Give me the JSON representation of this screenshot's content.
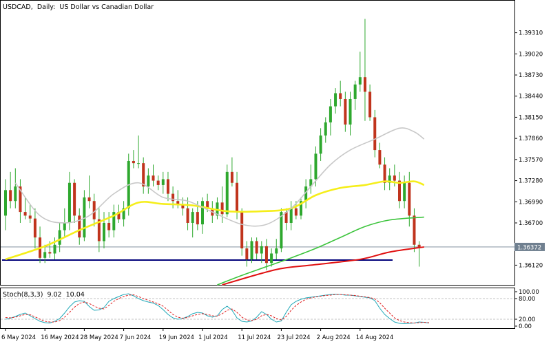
{
  "header": {
    "symbol": "USDCAD,",
    "timeframe": "Daily:",
    "description": "US Dollar vs Canadian Dollar"
  },
  "colors": {
    "bull": "#2ea82e",
    "bear": "#c0341d",
    "wick": "#2ea82e",
    "ma_fast": "#c8c8c8",
    "ma_mid": "#f5ee1a",
    "ma_slow": "#3cc43c",
    "ma_long": "#e01010",
    "support": "#00007a",
    "stoch_main": "#20a8b8",
    "stoch_signal": "#e02020",
    "last_price_bg": "#708090"
  },
  "chart_data": [
    {
      "type": "candlestick",
      "title": "USDCAD, Daily: US Dollar vs Canadian Dollar",
      "x_tick_labels": [
        "6 May 2024",
        "16 May 2024",
        "28 May 2024",
        "7 Jun 2024",
        "19 Jun 2024",
        "1 Jul 2024",
        "11 Jul 2024",
        "23 Jul 2024",
        "2 Aug 2024",
        "14 Aug 2024"
      ],
      "y_tick_labels": [
        "1.39310",
        "1.39020",
        "1.38730",
        "1.38440",
        "1.38150",
        "1.37860",
        "1.37570",
        "1.37280",
        "1.36990",
        "1.36700",
        "1.36120"
      ],
      "ylim": [
        1.3585,
        1.3975
      ],
      "last_price_label": "1.36372",
      "last_price": 1.3637,
      "support_level": 1.3619,
      "grid": false,
      "candles": [
        {
          "o": 1.368,
          "h": 1.373,
          "l": 1.366,
          "c": 1.3715
        },
        {
          "o": 1.3715,
          "h": 1.374,
          "l": 1.369,
          "c": 1.37
        },
        {
          "o": 1.37,
          "h": 1.3745,
          "l": 1.369,
          "c": 1.372
        },
        {
          "o": 1.372,
          "h": 1.373,
          "l": 1.367,
          "c": 1.3685
        },
        {
          "o": 1.3685,
          "h": 1.3705,
          "l": 1.3675,
          "c": 1.368
        },
        {
          "o": 1.368,
          "h": 1.3695,
          "l": 1.367,
          "c": 1.3676
        },
        {
          "o": 1.3676,
          "h": 1.369,
          "l": 1.3635,
          "c": 1.365
        },
        {
          "o": 1.365,
          "h": 1.3665,
          "l": 1.3615,
          "c": 1.3622
        },
        {
          "o": 1.3622,
          "h": 1.364,
          "l": 1.3615,
          "c": 1.363
        },
        {
          "o": 1.363,
          "h": 1.3645,
          "l": 1.3622,
          "c": 1.3628
        },
        {
          "o": 1.3628,
          "h": 1.365,
          "l": 1.362,
          "c": 1.364
        },
        {
          "o": 1.364,
          "h": 1.367,
          "l": 1.363,
          "c": 1.366
        },
        {
          "o": 1.366,
          "h": 1.369,
          "l": 1.365,
          "c": 1.367
        },
        {
          "o": 1.367,
          "h": 1.374,
          "l": 1.366,
          "c": 1.3725
        },
        {
          "o": 1.3725,
          "h": 1.373,
          "l": 1.367,
          "c": 1.368
        },
        {
          "o": 1.368,
          "h": 1.369,
          "l": 1.364,
          "c": 1.365
        },
        {
          "o": 1.365,
          "h": 1.3715,
          "l": 1.3645,
          "c": 1.3705
        },
        {
          "o": 1.3705,
          "h": 1.3735,
          "l": 1.369,
          "c": 1.37
        },
        {
          "o": 1.37,
          "h": 1.371,
          "l": 1.3665,
          "c": 1.3675
        },
        {
          "o": 1.3675,
          "h": 1.369,
          "l": 1.363,
          "c": 1.3645
        },
        {
          "o": 1.3645,
          "h": 1.3685,
          "l": 1.3635,
          "c": 1.367
        },
        {
          "o": 1.367,
          "h": 1.3685,
          "l": 1.365,
          "c": 1.366
        },
        {
          "o": 1.366,
          "h": 1.3695,
          "l": 1.365,
          "c": 1.3685
        },
        {
          "o": 1.3685,
          "h": 1.3695,
          "l": 1.367,
          "c": 1.3675
        },
        {
          "o": 1.3675,
          "h": 1.37,
          "l": 1.3665,
          "c": 1.369
        },
        {
          "o": 1.369,
          "h": 1.3765,
          "l": 1.368,
          "c": 1.3755
        },
        {
          "o": 1.3755,
          "h": 1.377,
          "l": 1.3745,
          "c": 1.3752
        },
        {
          "o": 1.3752,
          "h": 1.379,
          "l": 1.3745,
          "c": 1.3752
        },
        {
          "o": 1.3752,
          "h": 1.376,
          "l": 1.371,
          "c": 1.372
        },
        {
          "o": 1.372,
          "h": 1.3745,
          "l": 1.371,
          "c": 1.3735
        },
        {
          "o": 1.3735,
          "h": 1.375,
          "l": 1.372,
          "c": 1.3728
        },
        {
          "o": 1.3728,
          "h": 1.3735,
          "l": 1.3715,
          "c": 1.3722
        },
        {
          "o": 1.3722,
          "h": 1.374,
          "l": 1.371,
          "c": 1.373
        },
        {
          "o": 1.373,
          "h": 1.374,
          "l": 1.37,
          "c": 1.371
        },
        {
          "o": 1.371,
          "h": 1.372,
          "l": 1.369,
          "c": 1.37
        },
        {
          "o": 1.37,
          "h": 1.3715,
          "l": 1.369,
          "c": 1.3695
        },
        {
          "o": 1.3695,
          "h": 1.3705,
          "l": 1.368,
          "c": 1.369
        },
        {
          "o": 1.369,
          "h": 1.3705,
          "l": 1.366,
          "c": 1.367
        },
        {
          "o": 1.367,
          "h": 1.369,
          "l": 1.365,
          "c": 1.3685
        },
        {
          "o": 1.3685,
          "h": 1.37,
          "l": 1.366,
          "c": 1.3668
        },
        {
          "o": 1.3668,
          "h": 1.3705,
          "l": 1.3655,
          "c": 1.37
        },
        {
          "o": 1.37,
          "h": 1.371,
          "l": 1.3685,
          "c": 1.369
        },
        {
          "o": 1.369,
          "h": 1.37,
          "l": 1.367,
          "c": 1.368
        },
        {
          "o": 1.368,
          "h": 1.3705,
          "l": 1.3675,
          "c": 1.3698
        },
        {
          "o": 1.3698,
          "h": 1.372,
          "l": 1.367,
          "c": 1.3682
        },
        {
          "o": 1.3682,
          "h": 1.375,
          "l": 1.3678,
          "c": 1.374
        },
        {
          "o": 1.374,
          "h": 1.376,
          "l": 1.372,
          "c": 1.3725
        },
        {
          "o": 1.3725,
          "h": 1.374,
          "l": 1.3675,
          "c": 1.3685
        },
        {
          "o": 1.3685,
          "h": 1.369,
          "l": 1.3625,
          "c": 1.3635
        },
        {
          "o": 1.3635,
          "h": 1.3645,
          "l": 1.361,
          "c": 1.362
        },
        {
          "o": 1.362,
          "h": 1.365,
          "l": 1.3615,
          "c": 1.3645
        },
        {
          "o": 1.3645,
          "h": 1.365,
          "l": 1.362,
          "c": 1.3628
        },
        {
          "o": 1.3628,
          "h": 1.3645,
          "l": 1.3615,
          "c": 1.3638
        },
        {
          "o": 1.3638,
          "h": 1.3648,
          "l": 1.3605,
          "c": 1.3615
        },
        {
          "o": 1.3615,
          "h": 1.3635,
          "l": 1.361,
          "c": 1.3628
        },
        {
          "o": 1.3628,
          "h": 1.3648,
          "l": 1.362,
          "c": 1.3635
        },
        {
          "o": 1.3635,
          "h": 1.369,
          "l": 1.363,
          "c": 1.3685
        },
        {
          "o": 1.3685,
          "h": 1.369,
          "l": 1.366,
          "c": 1.367
        },
        {
          "o": 1.367,
          "h": 1.37,
          "l": 1.366,
          "c": 1.369
        },
        {
          "o": 1.369,
          "h": 1.37,
          "l": 1.3675,
          "c": 1.368
        },
        {
          "o": 1.368,
          "h": 1.3705,
          "l": 1.3675,
          "c": 1.37
        },
        {
          "o": 1.37,
          "h": 1.373,
          "l": 1.369,
          "c": 1.372
        },
        {
          "o": 1.372,
          "h": 1.375,
          "l": 1.371,
          "c": 1.373
        },
        {
          "o": 1.373,
          "h": 1.3775,
          "l": 1.372,
          "c": 1.3765
        },
        {
          "o": 1.3765,
          "h": 1.38,
          "l": 1.3755,
          "c": 1.379
        },
        {
          "o": 1.379,
          "h": 1.3815,
          "l": 1.378,
          "c": 1.3808
        },
        {
          "o": 1.3808,
          "h": 1.384,
          "l": 1.379,
          "c": 1.383
        },
        {
          "o": 1.383,
          "h": 1.3855,
          "l": 1.382,
          "c": 1.3848
        },
        {
          "o": 1.3848,
          "h": 1.3865,
          "l": 1.383,
          "c": 1.384
        },
        {
          "o": 1.384,
          "h": 1.385,
          "l": 1.3795,
          "c": 1.3805
        },
        {
          "o": 1.3805,
          "h": 1.385,
          "l": 1.379,
          "c": 1.384
        },
        {
          "o": 1.384,
          "h": 1.3865,
          "l": 1.3825,
          "c": 1.386
        },
        {
          "o": 1.386,
          "h": 1.3905,
          "l": 1.385,
          "c": 1.387
        },
        {
          "o": 1.387,
          "h": 1.395,
          "l": 1.381,
          "c": 1.385
        },
        {
          "o": 1.385,
          "h": 1.386,
          "l": 1.381,
          "c": 1.3815
        },
        {
          "o": 1.3815,
          "h": 1.3825,
          "l": 1.376,
          "c": 1.377
        },
        {
          "o": 1.377,
          "h": 1.378,
          "l": 1.3745,
          "c": 1.375
        },
        {
          "o": 1.375,
          "h": 1.376,
          "l": 1.3715,
          "c": 1.3725
        },
        {
          "o": 1.3725,
          "h": 1.3745,
          "l": 1.3715,
          "c": 1.3735
        },
        {
          "o": 1.3735,
          "h": 1.375,
          "l": 1.372,
          "c": 1.3728
        },
        {
          "o": 1.3728,
          "h": 1.374,
          "l": 1.369,
          "c": 1.37
        },
        {
          "o": 1.37,
          "h": 1.3735,
          "l": 1.369,
          "c": 1.3725
        },
        {
          "o": 1.3725,
          "h": 1.374,
          "l": 1.3665,
          "c": 1.368
        },
        {
          "o": 1.368,
          "h": 1.369,
          "l": 1.363,
          "c": 1.364
        },
        {
          "o": 1.364,
          "h": 1.3645,
          "l": 1.361,
          "c": 1.3637
        }
      ],
      "moving_averages": [
        {
          "color_key": "ma_long",
          "points": [
            [
              44,
              1.3585
            ],
            [
              55,
              1.3606
            ],
            [
              62,
              1.3612
            ],
            [
              72,
              1.362
            ],
            [
              78,
              1.363
            ],
            [
              85,
              1.3637
            ]
          ]
        },
        {
          "color_key": "ma_slow",
          "points": [
            [
              43,
              1.3585
            ],
            [
              48,
              1.3598
            ],
            [
              53,
              1.361
            ],
            [
              58,
              1.3622
            ],
            [
              63,
              1.3635
            ],
            [
              68,
              1.365
            ],
            [
              73,
              1.3665
            ],
            [
              78,
              1.3674
            ],
            [
              85,
              1.3678
            ]
          ]
        },
        {
          "color_key": "ma_mid",
          "points": [
            [
              0,
              1.362
            ],
            [
              8,
              1.3638
            ],
            [
              15,
              1.366
            ],
            [
              22,
              1.368
            ],
            [
              27,
              1.3698
            ],
            [
              32,
              1.3696
            ],
            [
              38,
              1.3694
            ],
            [
              45,
              1.3686
            ],
            [
              52,
              1.3686
            ],
            [
              58,
              1.369
            ],
            [
              63,
              1.3708
            ],
            [
              68,
              1.3718
            ],
            [
              73,
              1.3722
            ],
            [
              77,
              1.3727
            ],
            [
              80,
              1.3725
            ],
            [
              83,
              1.3727
            ],
            [
              85,
              1.3722
            ]
          ]
        },
        {
          "color_key": "ma_fast",
          "points": [
            [
              2,
              1.3725
            ],
            [
              7,
              1.368
            ],
            [
              12,
              1.367
            ],
            [
              17,
              1.368
            ],
            [
              22,
              1.371
            ],
            [
              27,
              1.3725
            ],
            [
              32,
              1.3705
            ],
            [
              37,
              1.37
            ],
            [
              42,
              1.3685
            ],
            [
              48,
              1.3668
            ],
            [
              53,
              1.3668
            ],
            [
              58,
              1.369
            ],
            [
              62,
              1.372
            ],
            [
              66,
              1.375
            ],
            [
              70,
              1.377
            ],
            [
              75,
              1.3785
            ],
            [
              80,
              1.38
            ],
            [
              83,
              1.3795
            ],
            [
              85,
              1.3785
            ]
          ]
        }
      ]
    },
    {
      "type": "line",
      "title": "Stoch(8,3,3) 9.02 10.04",
      "title_label": "Stoch(8,3,3)",
      "main_value_label": "9.02",
      "signal_value_label": "10.04",
      "ylim": [
        0,
        100
      ],
      "y_tick_labels": [
        "100.00",
        "80.00",
        "20.00",
        "0.00"
      ],
      "levels": [
        80,
        20
      ],
      "series": [
        {
          "color_key": "stoch_main",
          "values": [
            20,
            23,
            28,
            34,
            38,
            30,
            22,
            14,
            10,
            9,
            14,
            22,
            38,
            56,
            70,
            74,
            72,
            57,
            46,
            47,
            54,
            72,
            80,
            86,
            92,
            94,
            88,
            80,
            74,
            70,
            67,
            60,
            48,
            34,
            24,
            20,
            22,
            28,
            36,
            40,
            38,
            30,
            26,
            30,
            48,
            58,
            46,
            24,
            14,
            12,
            15,
            26,
            42,
            34,
            20,
            12,
            15,
            40,
            62,
            72,
            78,
            82,
            84,
            86,
            88,
            90,
            92,
            93,
            92,
            90,
            90,
            88,
            86,
            84,
            82,
            74,
            52,
            34,
            22,
            12,
            8,
            7,
            8,
            9,
            12,
            11,
            9
          ]
        },
        {
          "color_key": "stoch_signal",
          "values": [
            25,
            24,
            26,
            30,
            34,
            33,
            27,
            20,
            14,
            12,
            12,
            16,
            26,
            40,
            55,
            66,
            70,
            66,
            58,
            52,
            50,
            60,
            72,
            80,
            86,
            90,
            91,
            86,
            80,
            75,
            70,
            65,
            58,
            46,
            34,
            26,
            23,
            25,
            30,
            34,
            36,
            34,
            30,
            29,
            36,
            46,
            50,
            40,
            26,
            18,
            16,
            20,
            30,
            34,
            30,
            22,
            18,
            28,
            46,
            60,
            70,
            78,
            82,
            85,
            87,
            89,
            90,
            92,
            92,
            91,
            90,
            89,
            87,
            85,
            83,
            79,
            68,
            52,
            38,
            24,
            16,
            12,
            10,
            9,
            10,
            11,
            10
          ]
        }
      ]
    }
  ]
}
